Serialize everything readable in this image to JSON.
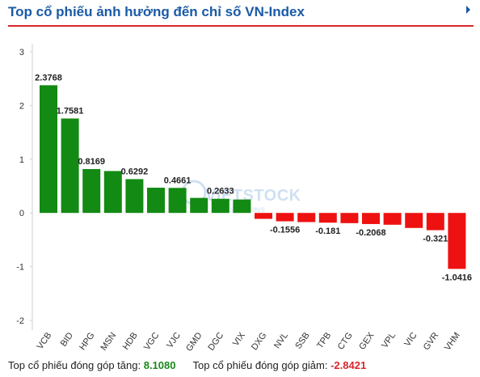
{
  "header": {
    "title": "Top cổ phiếu ảnh hưởng đến chỉ số VN-Index"
  },
  "watermark": {
    "text": "VIETSTOCK",
    "tagline": "ish always"
  },
  "colors": {
    "positive": "#138a13",
    "negative": "#ee1111",
    "title": "#1a5aa6",
    "accent_line": "#d9262c"
  },
  "chart_data": {
    "type": "bar",
    "title": "",
    "xlabel": "",
    "ylabel": "",
    "ylim": [
      -2,
      3
    ],
    "yticks": [
      -2,
      -1,
      0,
      1,
      2,
      3
    ],
    "grid": false,
    "categories": [
      "VCB",
      "BID",
      "HPG",
      "MSN",
      "HDB",
      "VGC",
      "VJC",
      "GMD",
      "DGC",
      "VIX",
      "DXG",
      "NVL",
      "SSB",
      "TPB",
      "CTG",
      "GEX",
      "VPL",
      "VIC",
      "GVR",
      "VHM"
    ],
    "values": [
      2.3768,
      1.7581,
      0.8169,
      0.78,
      0.6292,
      0.47,
      0.4661,
      0.28,
      0.2633,
      0.25,
      -0.11,
      -0.1556,
      -0.17,
      -0.181,
      -0.19,
      -0.2068,
      -0.22,
      -0.28,
      -0.321,
      -1.0416
    ],
    "labels": [
      "2.3768",
      "1.7581",
      "0.8169",
      "",
      "0.6292",
      "",
      "0.4661",
      "",
      "0.2633",
      "",
      "",
      "-0.1556",
      "",
      "-0.181",
      "",
      "-0.2068",
      "",
      "",
      "-0.321",
      "-1.0416"
    ]
  },
  "footer": {
    "up_label": "Top cổ phiếu đóng góp tăng:",
    "up_value": "8.1080",
    "down_label": "Top cổ phiếu đóng góp giảm:",
    "down_value": "-2.8421"
  }
}
